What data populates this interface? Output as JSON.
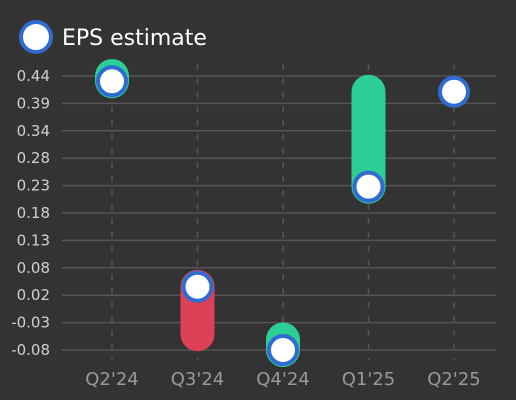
{
  "chart_data": {
    "type": "scatter",
    "title": "",
    "xlabel": "",
    "ylabel": "",
    "categories": [
      "Q2'24",
      "Q3'24",
      "Q4'24",
      "Q1'25",
      "Q2'25"
    ],
    "yticks": [
      "0.44",
      "0.39",
      "0.34",
      "0.28",
      "0.23",
      "0.18",
      "0.13",
      "0.08",
      "0.02",
      "-0.03",
      "-0.08"
    ],
    "ylim": [
      -0.08,
      0.44
    ],
    "grid": "horizontal solid, vertical dashed",
    "legend": {
      "placement": "top-left",
      "label": "EPS estimate"
    },
    "series": [
      {
        "name": "EPS estimate",
        "values": [
          0.43,
          0.04,
          -0.08,
          0.23,
          0.41
        ]
      }
    ],
    "actual_values": [
      0.44,
      -0.05,
      -0.06,
      0.41,
      null
    ],
    "colors": {
      "beat": "#2bcf96",
      "miss": "#dd4157",
      "estimate_fill": "#ffffff",
      "estimate_stroke": "#2f6bd1",
      "background": "#333333",
      "grid": "#555555"
    }
  }
}
